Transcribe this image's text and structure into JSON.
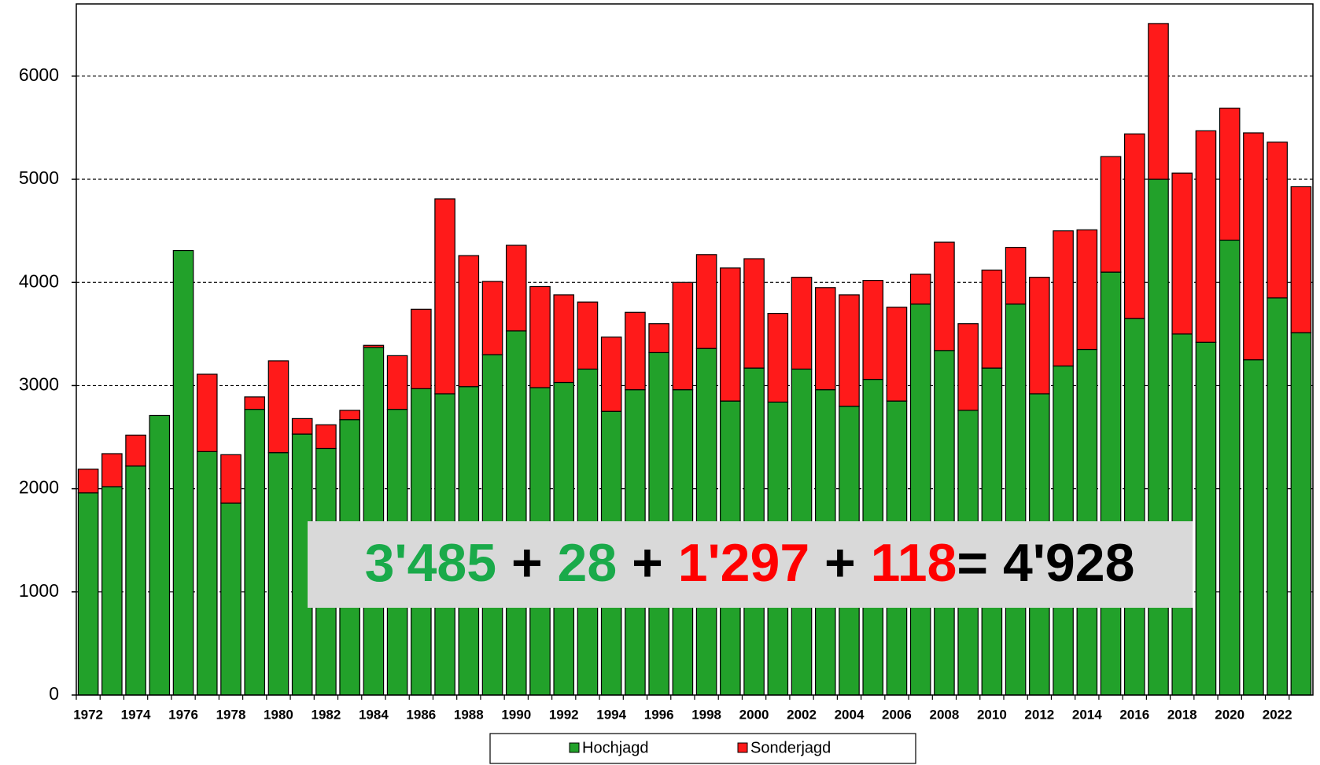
{
  "chart_data": {
    "type": "stacked_bar",
    "categories": [
      "1972",
      null,
      "1974",
      null,
      "1976",
      null,
      "1978",
      null,
      "1980",
      null,
      "1982",
      null,
      "1984",
      null,
      "1986",
      null,
      "1988",
      null,
      "1990",
      null,
      "1992",
      null,
      "1994",
      null,
      "1996",
      null,
      "1998",
      null,
      "2000",
      null,
      "2002",
      null,
      "2004",
      null,
      "2006",
      null,
      "2008",
      null,
      "2010",
      null,
      "2012",
      null,
      "2014",
      null,
      "2016",
      null,
      "2018",
      null,
      "2020",
      null,
      "2022",
      null
    ],
    "series": [
      {
        "name": "Hochjagd",
        "color": "#22a12a",
        "values": [
          1960,
          2020,
          2220,
          2710,
          4310,
          2360,
          1860,
          2770,
          2350,
          2530,
          2390,
          2670,
          3370,
          2770,
          2970,
          2920,
          2990,
          3300,
          3530,
          2980,
          3030,
          3160,
          2750,
          2960,
          3320,
          2960,
          3360,
          2850,
          3170,
          2840,
          3160,
          2960,
          2800,
          3060,
          2850,
          3790,
          3340,
          2760,
          3170,
          3790,
          2920,
          3190,
          3350,
          4100,
          3650,
          5000,
          3500,
          3420,
          4410,
          3250,
          3850,
          3513
        ]
      },
      {
        "name": "Sonderjagd",
        "color": "#ff1a1a",
        "values": [
          230,
          320,
          300,
          0,
          0,
          750,
          470,
          120,
          890,
          150,
          230,
          90,
          20,
          520,
          770,
          1890,
          1270,
          710,
          830,
          980,
          850,
          650,
          720,
          750,
          280,
          1040,
          910,
          1290,
          1060,
          860,
          890,
          990,
          1080,
          960,
          910,
          290,
          1050,
          840,
          950,
          550,
          1130,
          1310,
          1160,
          1120,
          1790,
          1510,
          1560,
          2050,
          1280,
          2200,
          1510,
          1415
        ]
      }
    ],
    "ylim": [
      0,
      6700
    ],
    "yticks": [
      0,
      1000,
      2000,
      3000,
      4000,
      5000,
      6000
    ],
    "grid": true,
    "legend": "bottom",
    "annotation": [
      {
        "text": "3'485",
        "color": "#1aaa4a"
      },
      {
        "text": " + ",
        "color": "#000000"
      },
      {
        "text": "28",
        "color": "#1aaa4a"
      },
      {
        "text": " + ",
        "color": "#000000"
      },
      {
        "text": "1'297",
        "color": "#ff0000"
      },
      {
        "text": " + ",
        "color": "#000000"
      },
      {
        "text": "118",
        "color": "#ff0000"
      },
      {
        "text": "= 4'928",
        "color": "#000000"
      }
    ]
  }
}
